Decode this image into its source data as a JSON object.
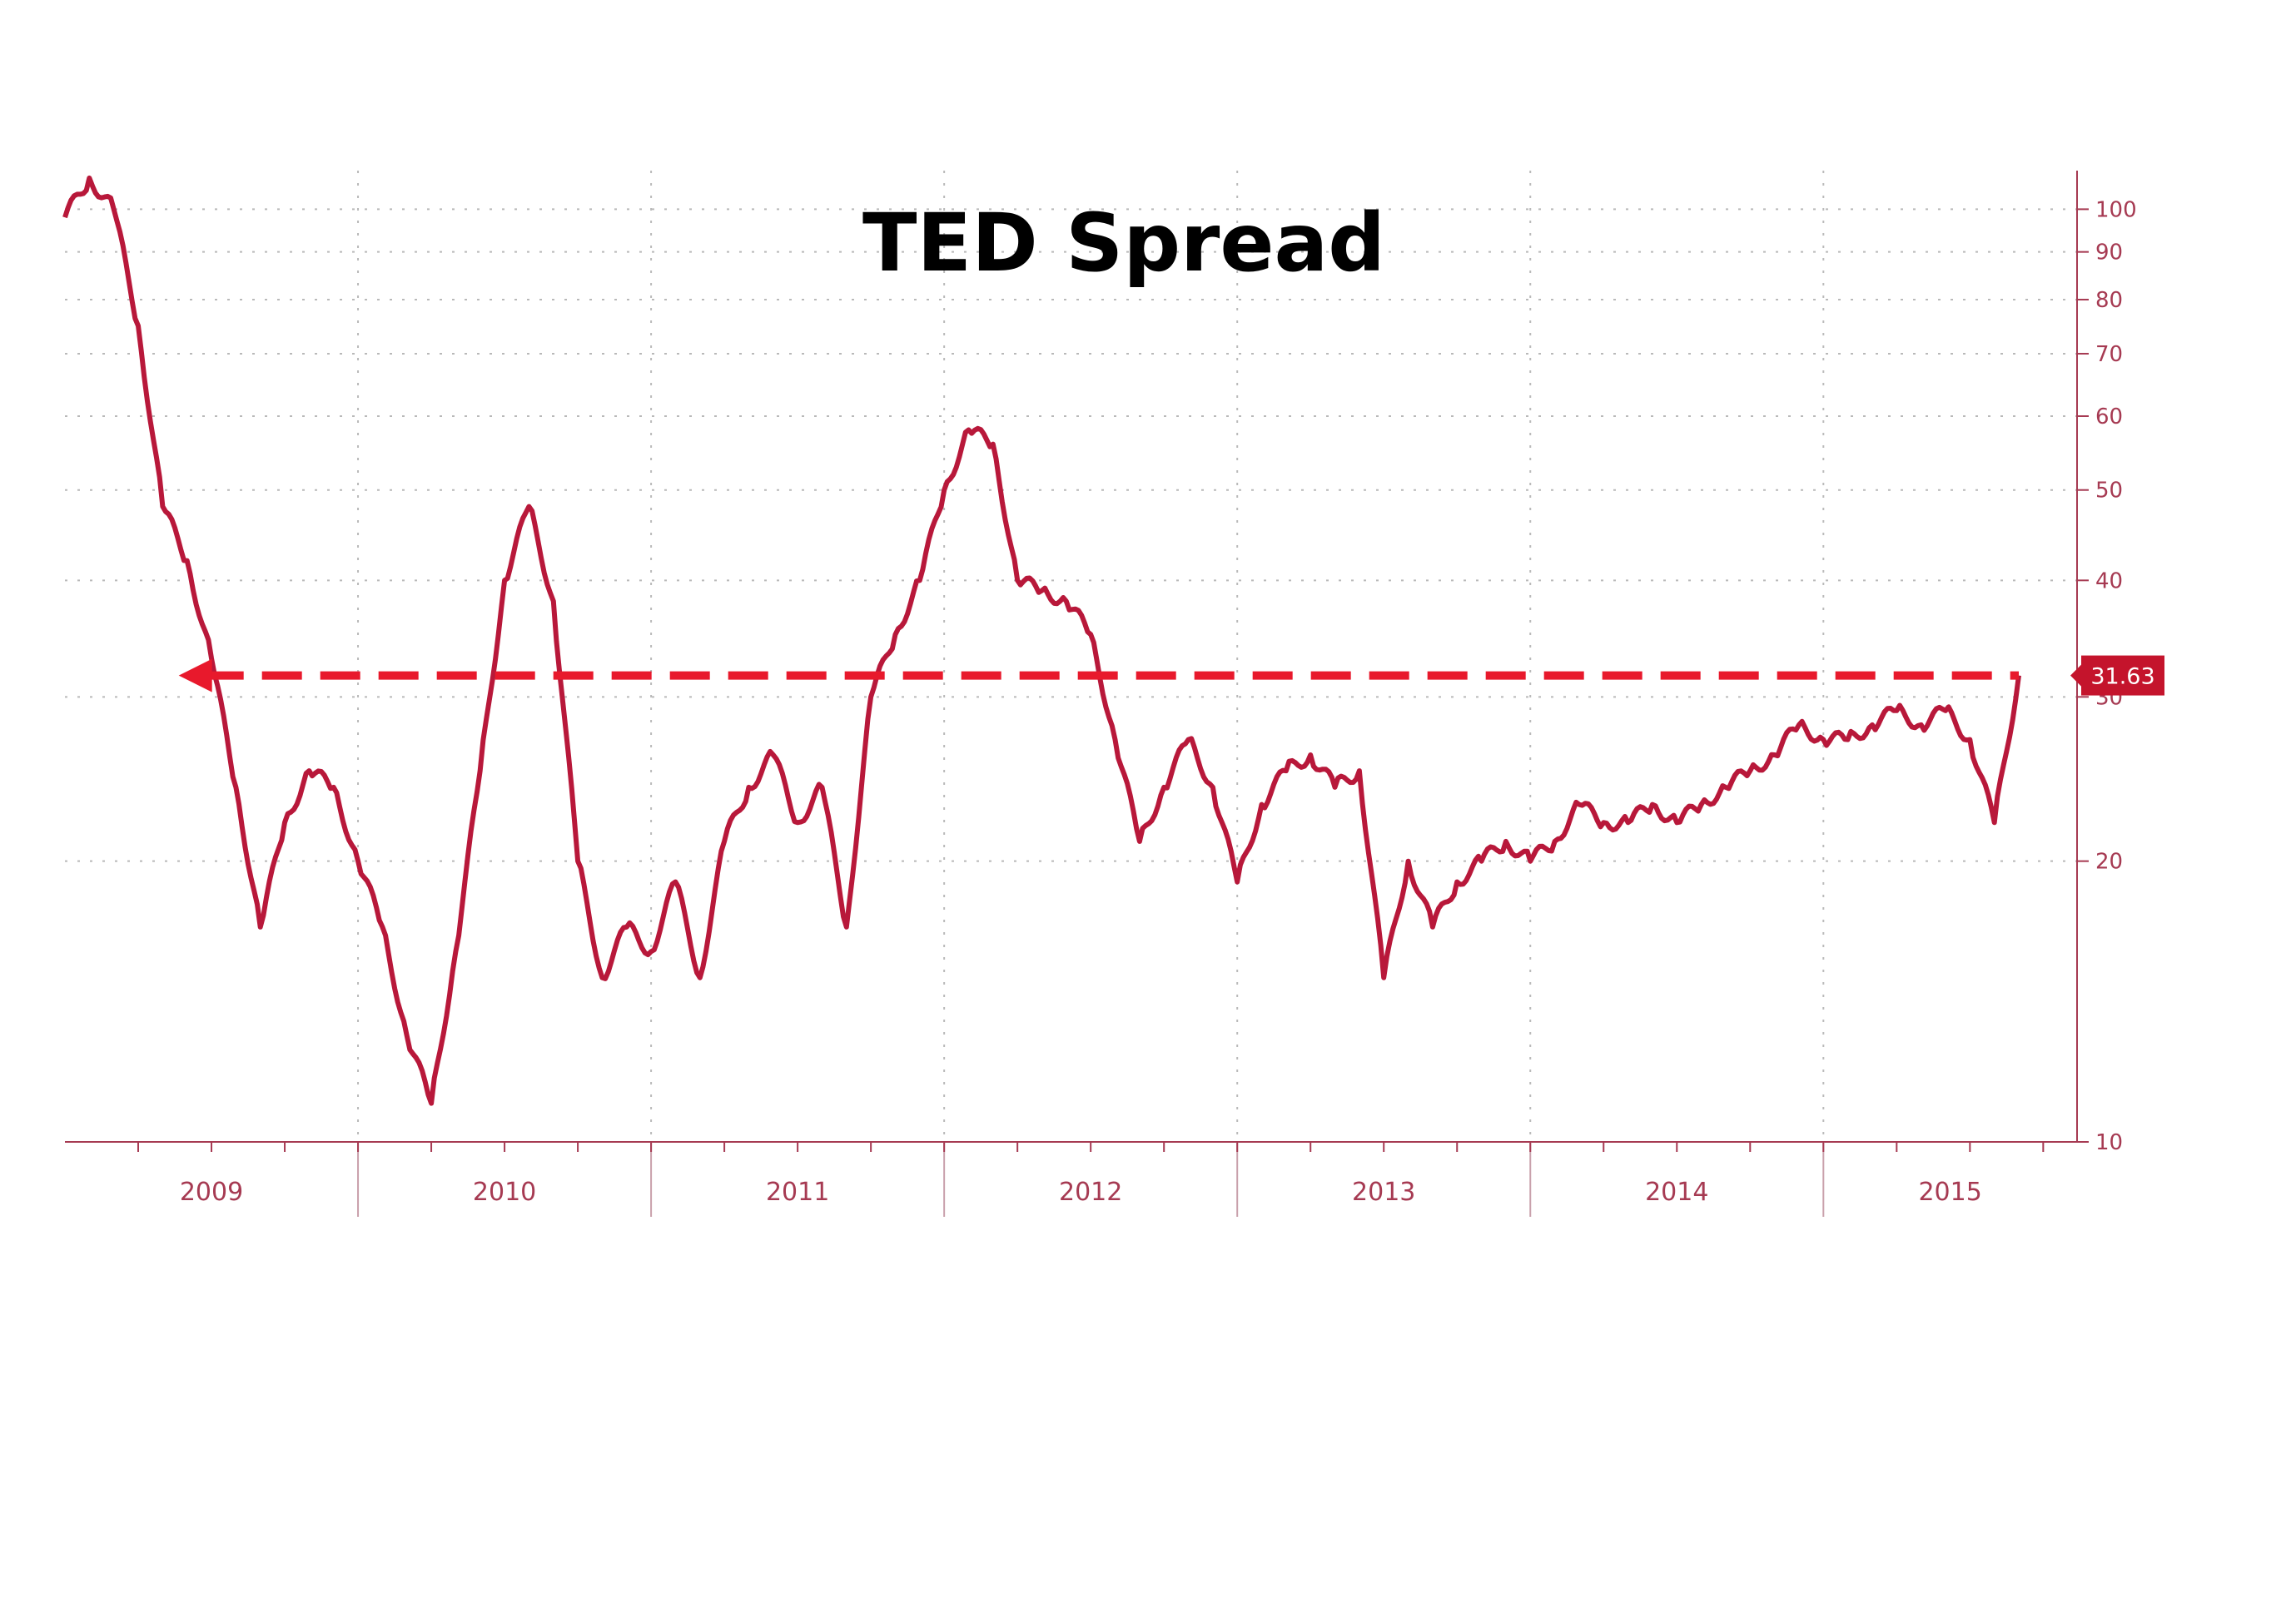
{
  "chart_data": {
    "type": "line",
    "title": "TED Spread",
    "xlabel": "",
    "ylabel": "",
    "y_scale": "log",
    "ylim": [
      10,
      110
    ],
    "y_ticks": [
      {
        "value": 10,
        "label": "10"
      },
      {
        "value": 20,
        "label": "20"
      },
      {
        "value": 30,
        "label": "30"
      },
      {
        "value": 40,
        "label": "40"
      },
      {
        "value": 50,
        "label": "50"
      },
      {
        "value": 60,
        "label": "60"
      },
      {
        "value": 70,
        "label": "70"
      },
      {
        "value": 80,
        "label": "80"
      },
      {
        "value": 90,
        "label": "90"
      },
      {
        "value": 100,
        "label": "100"
      }
    ],
    "x_categories": [
      "2009",
      "2010",
      "2011",
      "2012",
      "2013",
      "2014",
      "2015"
    ],
    "grid": true,
    "series": [
      {
        "color": "#b8183a",
        "x": [
          "2009-01",
          "2009-02",
          "2009-03",
          "2009-04",
          "2009-05",
          "2009-06",
          "2009-07",
          "2009-08",
          "2009-09",
          "2009-10",
          "2009-11",
          "2009-12",
          "2010-01",
          "2010-02",
          "2010-03",
          "2010-04",
          "2010-05",
          "2010-06",
          "2010-07",
          "2010-08",
          "2010-09",
          "2010-10",
          "2010-11",
          "2010-12",
          "2011-01",
          "2011-02",
          "2011-03",
          "2011-04",
          "2011-05",
          "2011-06",
          "2011-07",
          "2011-08",
          "2011-09",
          "2011-10",
          "2011-11",
          "2011-12",
          "2012-01",
          "2012-02",
          "2012-03",
          "2012-04",
          "2012-05",
          "2012-06",
          "2012-07",
          "2012-08",
          "2012-09",
          "2012-10",
          "2012-11",
          "2012-12",
          "2013-01",
          "2013-02",
          "2013-03",
          "2013-04",
          "2013-05",
          "2013-06",
          "2013-07",
          "2013-08",
          "2013-09",
          "2013-10",
          "2013-11",
          "2013-12",
          "2014-01",
          "2014-02",
          "2014-03",
          "2014-04",
          "2014-05",
          "2014-06",
          "2014-07",
          "2014-08",
          "2014-09",
          "2014-10",
          "2014-11",
          "2014-12",
          "2015-01",
          "2015-02",
          "2015-03",
          "2015-04",
          "2015-05",
          "2015-06",
          "2015-07",
          "2015-08",
          "2015-09"
        ],
        "values": [
          98,
          108,
          100,
          75,
          48,
          42,
          33,
          24,
          17,
          22,
          25,
          24,
          20,
          17,
          13,
          11,
          16,
          25,
          40,
          48,
          38,
          20,
          15,
          17,
          16,
          19,
          15,
          21,
          24,
          26,
          22,
          24,
          17,
          30,
          35,
          40,
          50,
          58,
          56,
          40,
          39,
          38,
          35,
          27,
          21,
          24,
          27,
          24,
          19,
          23,
          25,
          26,
          24,
          25,
          15,
          20,
          17,
          19,
          20,
          21,
          20,
          21,
          23,
          22,
          22,
          23,
          22,
          23,
          24,
          25,
          26,
          28,
          27,
          27,
          28,
          29,
          28,
          29,
          27,
          22,
          31.63
        ]
      }
    ],
    "reference_line": {
      "value": 31.63,
      "label": "31.63",
      "style": "dashed",
      "direction": "left-arrow"
    }
  }
}
